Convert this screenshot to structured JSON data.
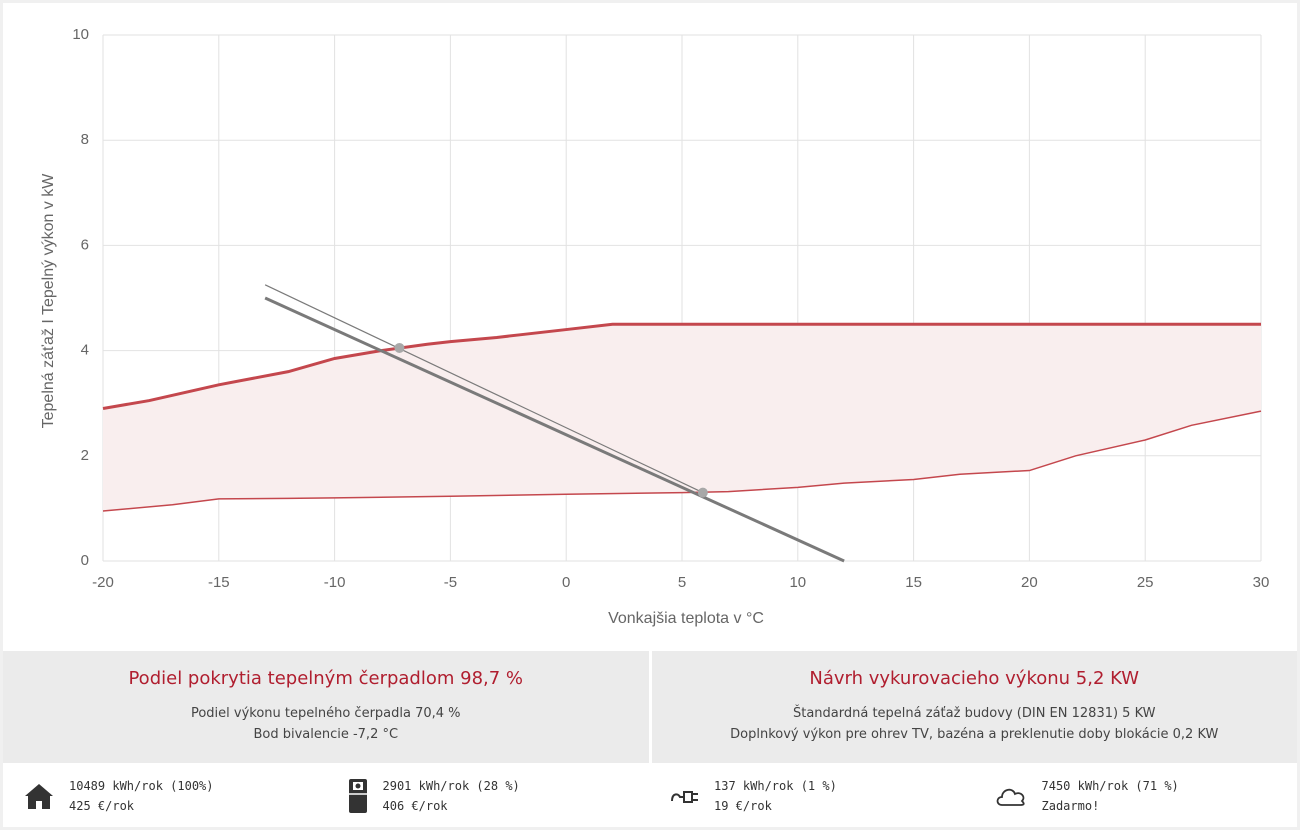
{
  "chart_data": {
    "type": "line",
    "x_label": "Vonkajšia teplota v °C",
    "y_label": "Tepelná záťaž I Tepelný výkon v kW",
    "xlim": [
      -20,
      30
    ],
    "xticks": [
      -20,
      -15,
      -10,
      -5,
      0,
      5,
      10,
      15,
      20,
      25,
      30
    ],
    "ylim": [
      0,
      10
    ],
    "yticks": [
      0,
      2,
      4,
      6,
      8,
      10
    ],
    "grid": true,
    "fill_between": [
      0,
      1
    ],
    "fill_color": "#f9eeee",
    "series": [
      {
        "color": "#c4474d",
        "width": 3,
        "x": [
          -20,
          -18,
          -17,
          -15,
          -12,
          -10,
          -8,
          -6,
          -5,
          -3,
          -2,
          0,
          2,
          30
        ],
        "values": [
          2.9,
          3.05,
          3.15,
          3.35,
          3.6,
          3.85,
          4.0,
          4.12,
          4.17,
          4.25,
          4.3,
          4.4,
          4.5,
          4.5
        ]
      },
      {
        "color": "#c4474d",
        "width": 1.5,
        "x": [
          -20,
          -17,
          -15,
          -12,
          -10,
          -5,
          0,
          5,
          7,
          10,
          12,
          15,
          17,
          20,
          22,
          25,
          27,
          30
        ],
        "values": [
          0.95,
          1.07,
          1.18,
          1.19,
          1.2,
          1.23,
          1.27,
          1.3,
          1.32,
          1.4,
          1.48,
          1.55,
          1.65,
          1.72,
          2.0,
          2.3,
          2.58,
          2.85
        ]
      },
      {
        "color": "#7a7a7a",
        "width": 3,
        "x": [
          -13,
          12
        ],
        "values": [
          5.0,
          0
        ]
      },
      {
        "color": "#7a7a7a",
        "width": 1.2,
        "x": [
          -13,
          6
        ],
        "values": [
          5.25,
          1.28
        ]
      }
    ],
    "points": {
      "color": "#a8a8a8",
      "x": [
        -7.2,
        5.9
      ],
      "values": [
        4.05,
        1.3
      ]
    }
  },
  "summary": {
    "left": {
      "title": "Podiel pokrytia tepelným čerpadlom 98,7 %",
      "lines": [
        "Podiel výkonu tepelného čerpadla 70,4 %",
        "Bod bivalencie -7,2 °C"
      ]
    },
    "right": {
      "title": "Návrh vykurovacieho výkonu 5,2 KW",
      "lines": [
        "Štandardná tepelná záťaž budovy (DIN EN 12831) 5 KW",
        "Doplnkový výkon pre ohrev TV, bazéna a preklenutie doby blokácie 0,2 KW"
      ]
    }
  },
  "stats": [
    {
      "energy": "10489 kWh/rok (100%)",
      "cost": "425 €/rok"
    },
    {
      "energy": "2901 kWh/rok (28 %)",
      "cost": "406 €/rok"
    },
    {
      "energy": "137 kWh/rok (1 %)",
      "cost": "19 €/rok"
    },
    {
      "energy": "7450 kWh/rok (71 %)",
      "cost": "Zadarmo!"
    }
  ]
}
